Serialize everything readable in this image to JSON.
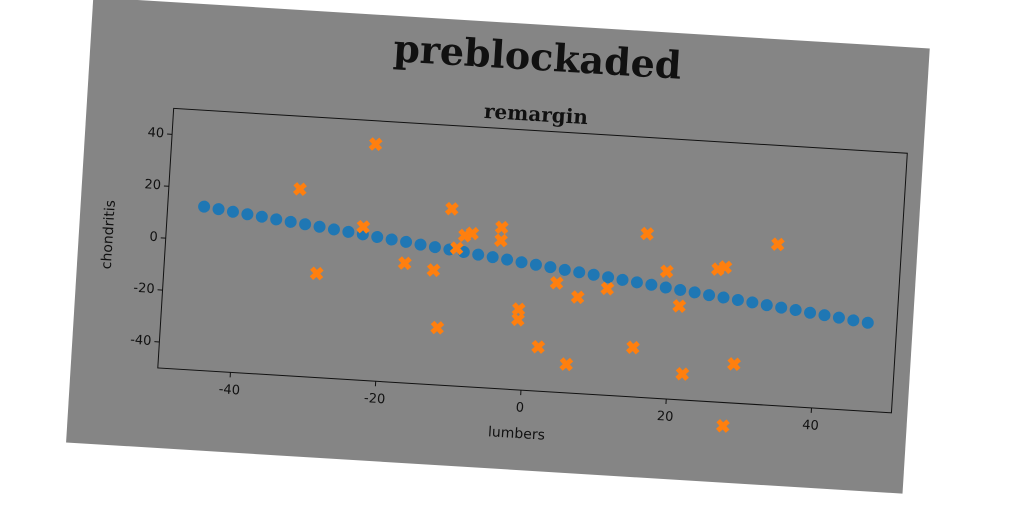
{
  "chart_data": {
    "type": "scatter",
    "title": "preblockaded",
    "subtitle": "remargin",
    "x_label": "lumbers",
    "y_label": "chondritis",
    "xlim": [
      -50,
      51
    ],
    "ylim": [
      -50,
      50
    ],
    "xticks": [
      -40,
      -20,
      0,
      20,
      40
    ],
    "yticks": [
      -40,
      -20,
      0,
      20,
      40
    ],
    "series": [
      {
        "color": "#1f77b4",
        "marker": "o",
        "x": [
          -45,
          -43,
          -41,
          -39,
          -37,
          -35,
          -33,
          -31,
          -29,
          -27,
          -25,
          -23,
          -21,
          -19,
          -17,
          -15,
          -13,
          -11,
          -9,
          -7,
          -5,
          -3,
          -1,
          1,
          3,
          5,
          7,
          9,
          11,
          13,
          15,
          17,
          19,
          21,
          23,
          25,
          27,
          29,
          31,
          33,
          35,
          37,
          39,
          41,
          43,
          45,
          47
        ],
        "y": [
          13.0,
          12.4,
          11.7,
          11.1,
          10.5,
          9.8,
          9.2,
          8.6,
          8.0,
          7.3,
          6.7,
          6.1,
          5.4,
          4.8,
          4.2,
          3.5,
          2.9,
          2.3,
          1.7,
          1.0,
          0.4,
          -0.2,
          -0.9,
          -1.5,
          -2.1,
          -2.8,
          -3.4,
          -4.0,
          -4.6,
          -5.3,
          -5.9,
          -6.5,
          -7.2,
          -7.8,
          -8.4,
          -9.1,
          -9.7,
          -10.3,
          -10.9,
          -11.6,
          -12.2,
          -12.8,
          -13.5,
          -14.1,
          -14.7,
          -15.4,
          -16.0
        ]
      },
      {
        "color": "#ff7f0e",
        "marker": "x",
        "x": [
          -22,
          -32,
          -29,
          -23,
          -17,
          -13,
          -12,
          -11,
          -10,
          -9,
          -8,
          -4,
          -4,
          -1,
          -1,
          2,
          4,
          6,
          7,
          11,
          15,
          16,
          19,
          21,
          22,
          26,
          27,
          29,
          28,
          34
        ],
        "y": [
          41,
          22,
          -10,
          9,
          -4,
          -6,
          -28,
          18,
          3,
          8,
          9,
          12,
          7,
          -19,
          -23,
          -33,
          -8,
          -39,
          -13,
          -9,
          -31,
          13,
          -1,
          -14,
          -40,
          1,
          2,
          -35,
          -59,
          12
        ]
      }
    ]
  }
}
